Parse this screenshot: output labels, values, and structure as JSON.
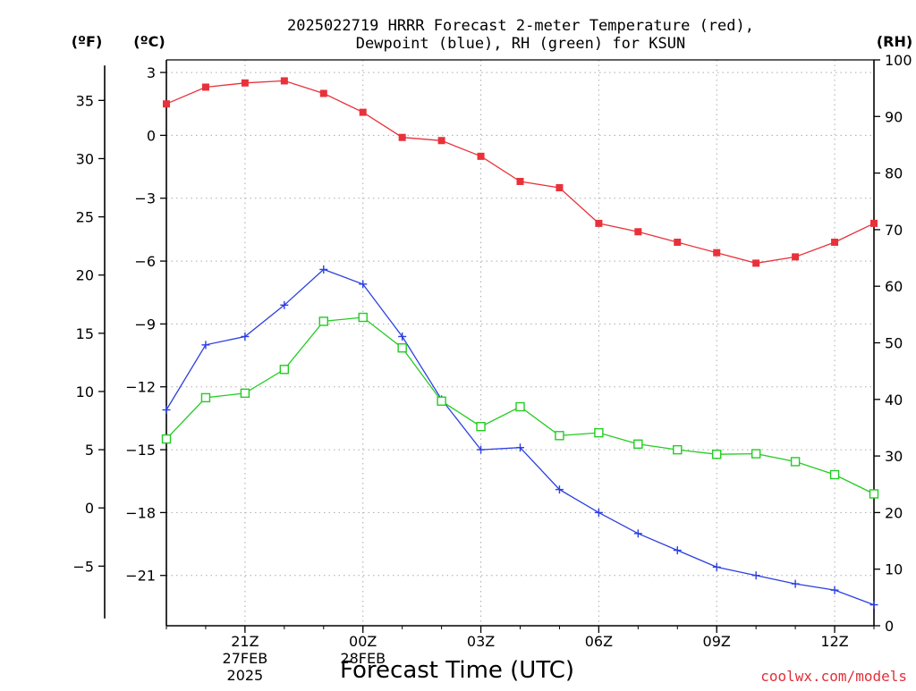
{
  "chart_data": {
    "type": "line",
    "title_line1": "2025022719 HRRR Forecast 2-meter Temperature (red),",
    "title_line2": "Dewpoint (blue), RH (green) for KSUN",
    "xlabel": "Forecast Time (UTC)",
    "credit": "coolwx.com/models",
    "unit_f": "(ºF)",
    "unit_c": "(ºC)",
    "unit_rh": "(RH)",
    "x_hours": [
      0,
      1,
      2,
      3,
      4,
      5,
      6,
      7,
      8,
      9,
      10,
      11,
      12,
      13,
      14,
      15,
      16,
      17,
      18
    ],
    "x_ticks": [
      {
        "hour": 2,
        "label": "21Z",
        "sub1": "27FEB",
        "sub2": "2025"
      },
      {
        "hour": 5,
        "label": "00Z",
        "sub1": "28FEB",
        "sub2": ""
      },
      {
        "hour": 8,
        "label": "03Z",
        "sub1": "",
        "sub2": ""
      },
      {
        "hour": 11,
        "label": "06Z",
        "sub1": "",
        "sub2": ""
      },
      {
        "hour": 14,
        "label": "09Z",
        "sub1": "",
        "sub2": ""
      },
      {
        "hour": 17,
        "label": "12Z",
        "sub1": "",
        "sub2": ""
      }
    ],
    "c_ticks": [
      {
        "value": 3,
        "label": "3"
      },
      {
        "value": 0,
        "label": "0"
      },
      {
        "value": -3,
        "label": "−3"
      },
      {
        "value": -6,
        "label": "−6"
      },
      {
        "value": -9,
        "label": "−9"
      },
      {
        "value": -12,
        "label": "−12"
      },
      {
        "value": -15,
        "label": "−15"
      },
      {
        "value": -18,
        "label": "−18"
      },
      {
        "value": -21,
        "label": "−21"
      }
    ],
    "f_ticks": [
      {
        "value": 35,
        "label": "35"
      },
      {
        "value": 30,
        "label": "30"
      },
      {
        "value": 25,
        "label": "25"
      },
      {
        "value": 20,
        "label": "20"
      },
      {
        "value": 15,
        "label": "15"
      },
      {
        "value": 10,
        "label": "10"
      },
      {
        "value": 5,
        "label": "5"
      },
      {
        "value": 0,
        "label": "0"
      },
      {
        "value": -5,
        "label": "−5"
      }
    ],
    "rh_ticks": [
      {
        "value": 100,
        "label": "100"
      },
      {
        "value": 90,
        "label": "90"
      },
      {
        "value": 80,
        "label": "80"
      },
      {
        "value": 70,
        "label": "70"
      },
      {
        "value": 60,
        "label": "60"
      },
      {
        "value": 50,
        "label": "50"
      },
      {
        "value": 40,
        "label": "40"
      },
      {
        "value": 30,
        "label": "30"
      },
      {
        "value": 20,
        "label": "20"
      },
      {
        "value": 10,
        "label": "10"
      },
      {
        "value": 0,
        "label": "0"
      }
    ],
    "c_range": [
      -23.4,
      3.6
    ],
    "rh_range": [
      0,
      100
    ],
    "f_line_range": [
      -9.5,
      38
    ],
    "grid": true,
    "series": [
      {
        "name": "Temperature",
        "unit": "C",
        "axis": "c",
        "color": "#e8313a",
        "marker": "filled-square",
        "values": [
          1.5,
          2.3,
          2.5,
          2.6,
          2.0,
          1.1,
          -0.1,
          -0.25,
          -1.0,
          -2.2,
          -2.5,
          -4.2,
          -4.6,
          -5.1,
          -5.6,
          -6.1,
          -5.8,
          -5.1,
          -4.2
        ]
      },
      {
        "name": "Dewpoint",
        "unit": "C",
        "axis": "c",
        "color": "#2b3fe0",
        "marker": "plus",
        "values": [
          -13.1,
          -10.0,
          -9.6,
          -8.1,
          -6.4,
          -7.1,
          -9.6,
          -12.6,
          -15.0,
          -14.9,
          -16.9,
          -18.0,
          -19.0,
          -19.8,
          -20.6,
          -21.0,
          -21.4,
          -21.7,
          -22.4
        ]
      },
      {
        "name": "RH",
        "unit": "%",
        "axis": "rh",
        "color": "#22cc22",
        "marker": "open-square",
        "values": [
          33,
          40.3,
          41.1,
          45.3,
          53.8,
          54.5,
          49.1,
          39.7,
          35.2,
          38.7,
          33.6,
          34.1,
          32.1,
          31.1,
          30.3,
          30.4,
          29.0,
          26.7,
          23.3
        ]
      }
    ]
  }
}
